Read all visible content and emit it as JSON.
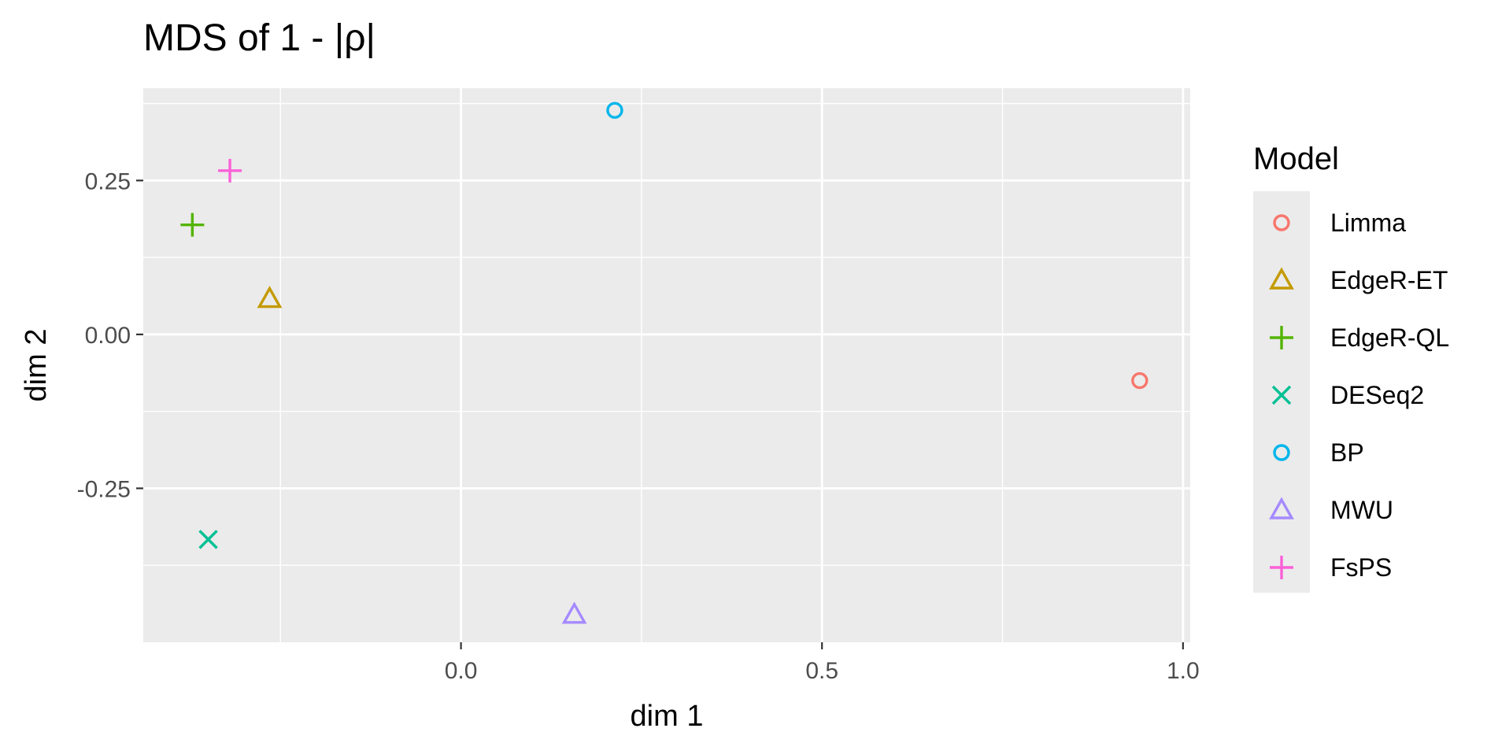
{
  "chart_data": {
    "type": "scatter",
    "title": "MDS of 1 - |ρ|",
    "xlabel": "dim 1",
    "ylabel": "dim 2",
    "xlim": [
      -0.44,
      1.01
    ],
    "ylim": [
      -0.5,
      0.4
    ],
    "x_ticks": [
      0.0,
      0.5,
      1.0
    ],
    "x_tick_labels": [
      "0.0",
      "0.5",
      "1.0"
    ],
    "y_ticks": [
      -0.25,
      0.0,
      0.25
    ],
    "y_tick_labels": [
      "-0.25",
      "0.00",
      "0.25"
    ],
    "grid": true,
    "legend": {
      "title": "Model",
      "position": "right"
    },
    "series": [
      {
        "name": "Limma",
        "shape": "circle",
        "color": "#F8766D",
        "x": 0.94,
        "y": -0.075
      },
      {
        "name": "EdgeR-ET",
        "shape": "triangle",
        "color": "#C49A00",
        "x": -0.265,
        "y": 0.058
      },
      {
        "name": "EdgeR-QL",
        "shape": "plus",
        "color": "#53B400",
        "x": -0.372,
        "y": 0.178
      },
      {
        "name": "DESeq2",
        "shape": "cross",
        "color": "#00C094",
        "x": -0.35,
        "y": -0.333
      },
      {
        "name": "BP",
        "shape": "circle",
        "color": "#00B6EB",
        "x": 0.213,
        "y": 0.364
      },
      {
        "name": "MWU",
        "shape": "triangle",
        "color": "#A58AFF",
        "x": 0.157,
        "y": -0.455
      },
      {
        "name": "FsPS",
        "shape": "plus",
        "color": "#FB61D7",
        "x": -0.32,
        "y": 0.266
      }
    ]
  }
}
